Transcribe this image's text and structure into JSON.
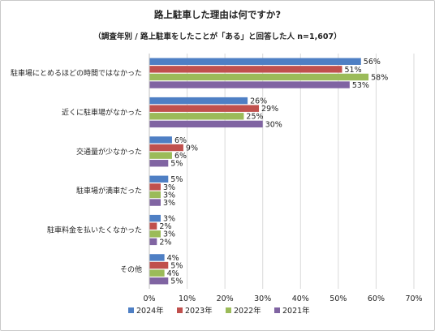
{
  "chart_data": {
    "type": "bar",
    "orientation": "horizontal",
    "title": "路上駐車した理由は何ですか?",
    "subtitle": "（調査年別 / 路上駐車をしたことが「ある」と回答した人 n=1,607）",
    "categories": [
      "駐車場にとめるほどの時間ではなかった",
      "近くに駐車場がなかった",
      "交通量が少なかった",
      "駐車場が満車だった",
      "駐車料金を払いたくなかった",
      "その他"
    ],
    "series": [
      {
        "name": "2024年",
        "color": "#4e7fc4",
        "values": [
          56,
          26,
          6,
          5,
          3,
          4
        ]
      },
      {
        "name": "2023年",
        "color": "#c0504d",
        "values": [
          51,
          29,
          9,
          3,
          2,
          5
        ]
      },
      {
        "name": "2022年",
        "color": "#9bbb59",
        "values": [
          58,
          25,
          6,
          3,
          3,
          4
        ]
      },
      {
        "name": "2021年",
        "color": "#8064a2",
        "values": [
          53,
          30,
          5,
          3,
          2,
          5
        ]
      }
    ],
    "xlim": [
      0,
      70
    ],
    "xticks": [
      0,
      10,
      20,
      30,
      40,
      50,
      60,
      70
    ],
    "tick_suffix": "%",
    "value_suffix": "%",
    "grid": true,
    "legend_position": "bottom"
  }
}
